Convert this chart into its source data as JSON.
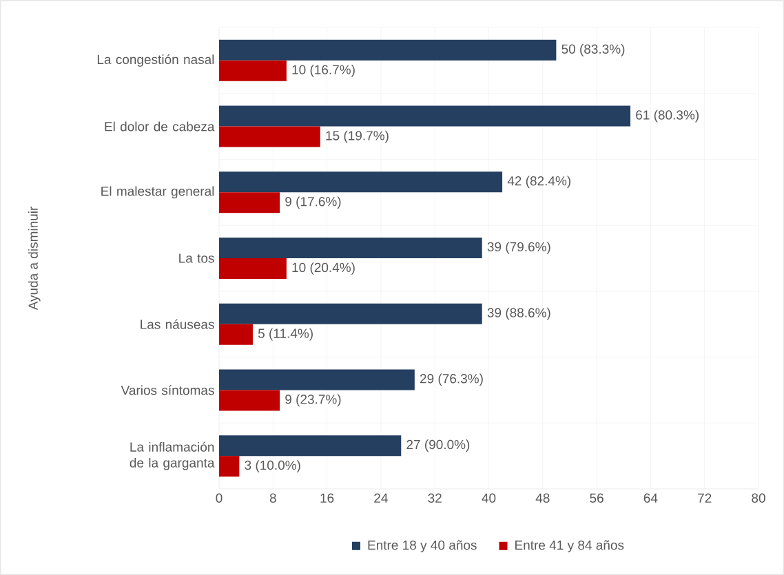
{
  "chart_data": {
    "type": "bar",
    "orientation": "horizontal",
    "ylabel": "Ayuda a disminuir",
    "categories": [
      "La congestión nasal",
      "El dolor de cabeza",
      "El malestar general",
      "La tos",
      "Las náuseas",
      "Varios síntomas",
      "La inflamación de la garganta"
    ],
    "series": [
      {
        "name": "Entre 18 y 40 años",
        "color": "#243f60",
        "values": [
          50,
          61,
          42,
          39,
          39,
          29,
          27
        ],
        "value_labels": [
          "50 (83.3%)",
          "61 (80.3%)",
          "42 (82.4%)",
          "39 (79.6%)",
          "39 (88.6%)",
          "29 (76.3%)",
          "27 (90.0%)"
        ]
      },
      {
        "name": "Entre 41 y 84 años",
        "color": "#c00000",
        "values": [
          10,
          15,
          9,
          10,
          5,
          9,
          3
        ],
        "value_labels": [
          "10 (16.7%)",
          "15 (19.7%)",
          "9 (17.6%)",
          "10 (20.4%)",
          "5 (11.4%)",
          "9 (23.7%)",
          "3 (10.0%)"
        ]
      }
    ],
    "xlim": [
      0,
      80
    ],
    "xticks": [
      0,
      8,
      16,
      24,
      32,
      40,
      48,
      56,
      64,
      72,
      80
    ],
    "grid": true,
    "legend": "bottom"
  }
}
